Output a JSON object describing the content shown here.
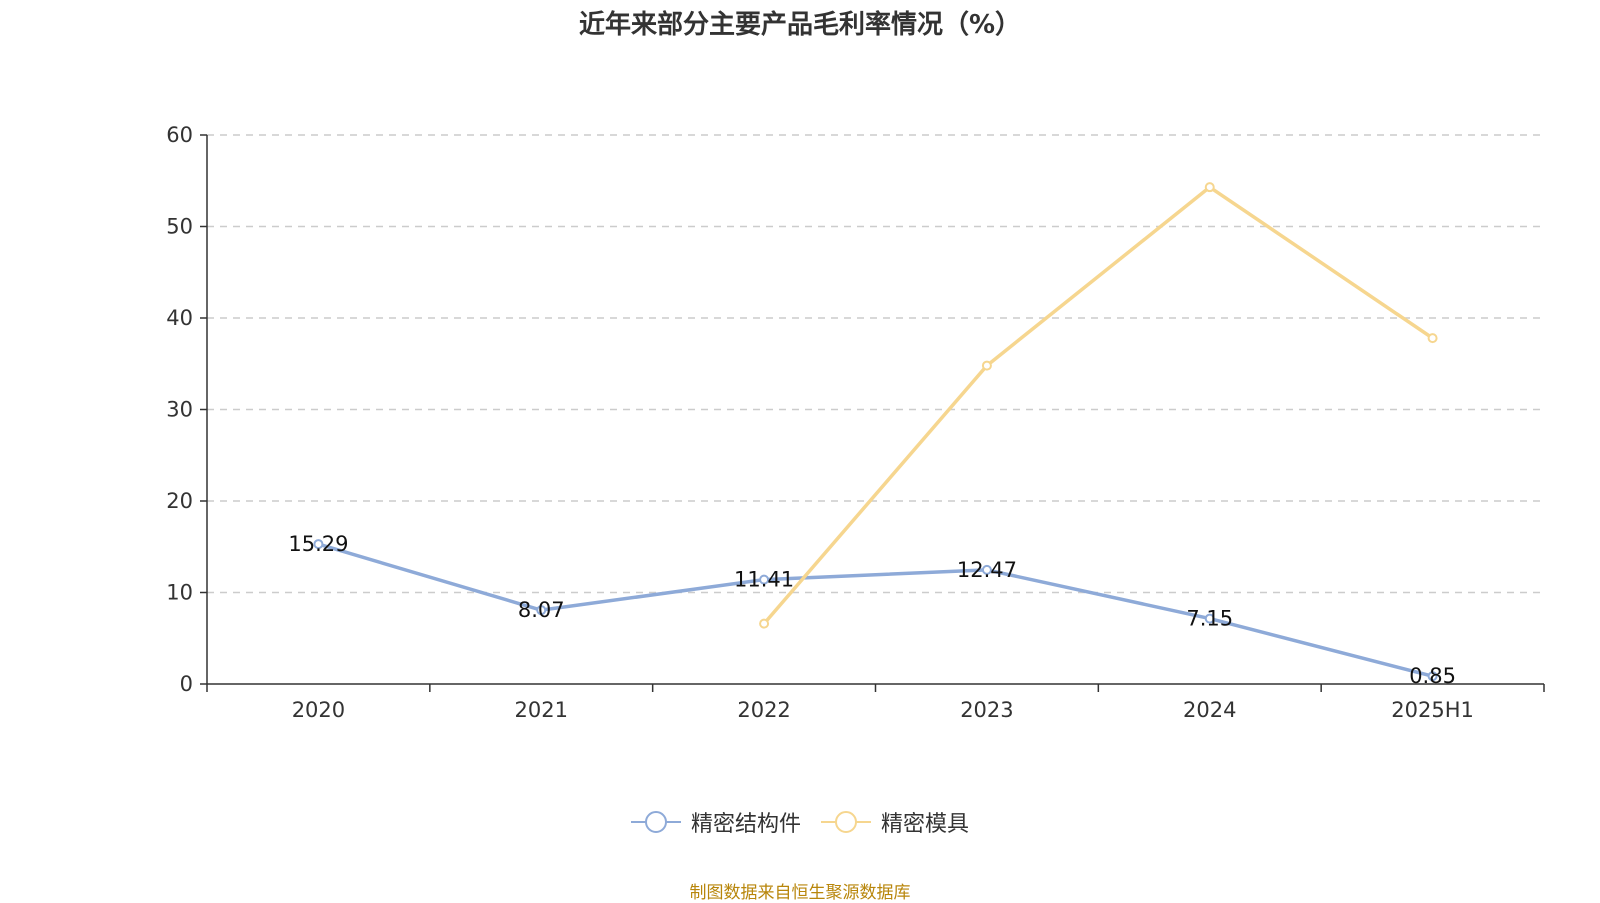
{
  "chart_data": {
    "type": "line",
    "title": "近年来部分主要产品毛利率情况（%）",
    "categories": [
      "2020",
      "2021",
      "2022",
      "2023",
      "2024",
      "2025H1"
    ],
    "ylim": [
      0,
      60
    ],
    "yticks": [
      0,
      10,
      20,
      30,
      40,
      50,
      60
    ],
    "grid": true,
    "legend_position": "bottom",
    "series": [
      {
        "name": "精密结构件",
        "color": "#8eaad8",
        "values": [
          15.29,
          8.07,
          11.41,
          12.47,
          7.15,
          0.85
        ],
        "labels": [
          "15.29",
          "8.07",
          "11.41",
          "12.47",
          "7.15",
          "0.85"
        ]
      },
      {
        "name": "精密模具",
        "color": "#f6d68f",
        "values": [
          null,
          null,
          6.6,
          34.8,
          54.3,
          37.8
        ],
        "labels": null
      }
    ]
  },
  "source_note": "制图数据来自恒生聚源数据库"
}
